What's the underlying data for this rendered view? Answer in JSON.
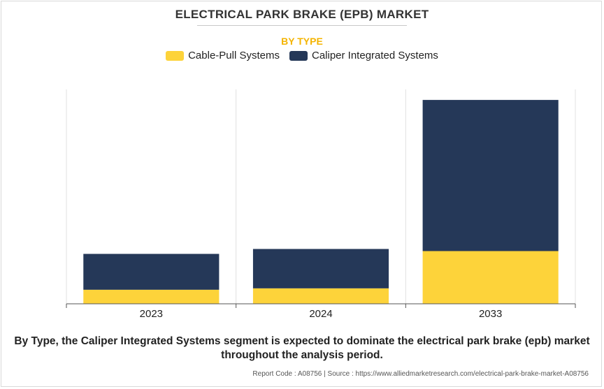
{
  "title": "ELECTRICAL PARK BRAKE (EPB) MARKET",
  "subtitle": "BY TYPE",
  "caption": "By Type, the Caliper Integrated Systems segment is expected to dominate the electrical park brake (epb) market throughout the analysis period.",
  "footer": "Report Code : A08756  |  Source : https://www.alliedmarketresearch.com/electrical-park-brake-market-A08756",
  "colors": {
    "cable": "#FDD33A",
    "caliper": "#253858",
    "grid": "#e0e0e0",
    "axis": "#555555"
  },
  "chart_data": {
    "type": "bar",
    "stacked": true,
    "title": "ELECTRICAL PARK BRAKE (EPB) MARKET",
    "subtitle": "BY TYPE",
    "categories": [
      "2023",
      "2024",
      "2033"
    ],
    "series": [
      {
        "name": "Cable-Pull Systems",
        "values": [
          20,
          22,
          75
        ]
      },
      {
        "name": "Caliper Integrated Systems",
        "values": [
          51,
          56,
          215
        ]
      }
    ],
    "ylim": [
      0,
      305
    ],
    "xlabel": "",
    "ylabel": "",
    "legend_position": "top-center",
    "grid": "vertical"
  }
}
